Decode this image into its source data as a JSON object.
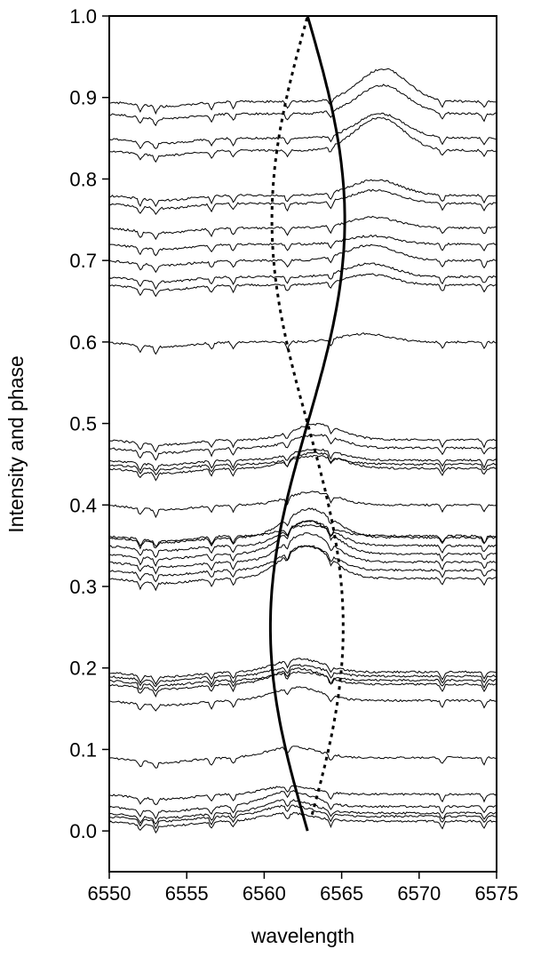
{
  "chart_data": {
    "type": "line",
    "title": "",
    "xlabel": "wavelength",
    "ylabel": "Intensity and phase",
    "xlim": [
      6550,
      6575
    ],
    "ylim": [
      -0.05,
      1.0
    ],
    "x_ticks": [
      6550,
      6555,
      6560,
      6565,
      6570,
      6575
    ],
    "x_tick_labels": [
      "6550",
      "6555",
      "6560",
      "6565",
      "6570",
      "6575"
    ],
    "y_ticks": [
      0.0,
      0.1,
      0.2,
      0.3,
      0.4,
      0.5,
      0.6,
      0.7,
      0.8,
      0.9,
      1.0
    ],
    "y_tick_labels": [
      "0.0",
      "0.1",
      "0.2",
      "0.3",
      "0.4",
      "0.5",
      "0.6",
      "0.7",
      "0.8",
      "0.9",
      "1.0"
    ],
    "grid": false,
    "line_color": "#000000",
    "curves": {
      "radial_velocity_solid": {
        "style": "solid",
        "center_wavelength": 6562.8,
        "amplitude": 2.4,
        "phase_offset": 0.0,
        "phase_range": [
          0.0,
          1.0
        ]
      },
      "radial_velocity_dotted": {
        "style": "dotted",
        "center_wavelength": 6562.8,
        "amplitude": 2.3,
        "phase_offset": 0.5,
        "phase_range": [
          0.02,
          1.0
        ]
      }
    },
    "spectra": {
      "description_phases": [
        0.012,
        0.018,
        0.022,
        0.03,
        0.045,
        0.09,
        0.16,
        0.18,
        0.185,
        0.19,
        0.195,
        0.31,
        0.32,
        0.33,
        0.34,
        0.35,
        0.36,
        0.362,
        0.4,
        0.445,
        0.45,
        0.455,
        0.47,
        0.48,
        0.6,
        0.67,
        0.68,
        0.7,
        0.72,
        0.74,
        0.77,
        0.78,
        0.835,
        0.85,
        0.88,
        0.895
      ],
      "emission_peak_phases": [
        0.31,
        0.32,
        0.33,
        0.34,
        0.35,
        0.36,
        0.835,
        0.85,
        0.88,
        0.895
      ],
      "absorption_lines_wavelength": [
        6552.0,
        6553.0,
        6556.6,
        6558.0,
        6561.5,
        6564.3,
        6571.5,
        6574.2
      ]
    }
  }
}
